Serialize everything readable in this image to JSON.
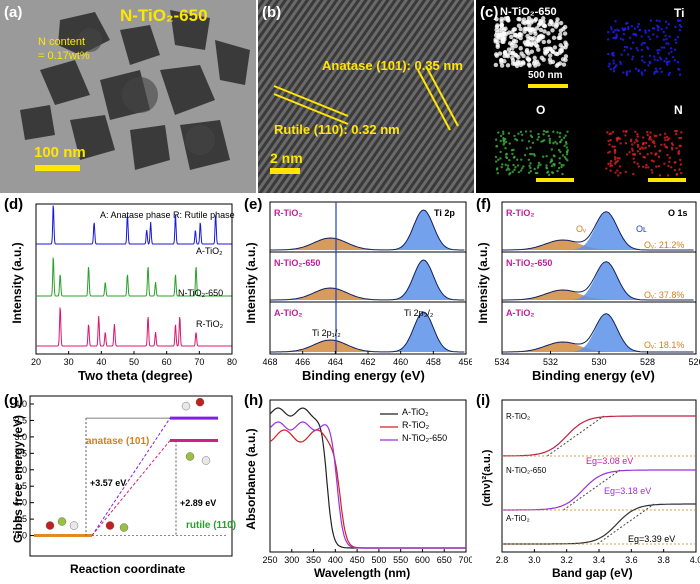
{
  "labels": {
    "a": "(a)",
    "b": "(b)",
    "c": "(c)",
    "d": "(d)",
    "e": "(e)",
    "f": "(f)",
    "g": "(g)",
    "h": "(h)",
    "i": "(i)"
  },
  "a": {
    "title": "N-TiO₂-650",
    "ncontent1": "N content",
    "ncontent2": "= 0.17wt%",
    "scale": "100 nm"
  },
  "b": {
    "anatase": "Anatase (101): 0.35 nm",
    "rutile": "Rutile (110): 0.32 nm",
    "scale": "2 nm"
  },
  "c": {
    "t1": "N-TiO₂-650",
    "t2": "Ti",
    "t3": "O",
    "t4": "N",
    "scale": "500 nm",
    "colors": [
      "#ffffff",
      "#2020ff",
      "#3db33d",
      "#e02020"
    ]
  },
  "d": {
    "legend": "A: Anatase phase   R: Rutile phase",
    "s1": "A-TiO₂",
    "s2": "N-TiO₂-650",
    "s3": "R-TiO₂",
    "ylabel": "Intensity (a.u.)",
    "xlabel": "Two theta (degree)",
    "xticks": [
      "20",
      "30",
      "40",
      "50",
      "60",
      "70",
      "80"
    ],
    "colors": [
      "#1818d8",
      "#2aa02a",
      "#d81870"
    ]
  },
  "e": {
    "s1": "R-TiO₂",
    "s2": "N-TiO₂-650",
    "s3": "A-TiO₂",
    "peak": "Ti 2p",
    "p1": "Ti 2p₁/₂",
    "p2": "Ti 2p₃/₂",
    "ylabel": "Intensity (a.u.)",
    "xlabel": "Binding energy (eV)",
    "xticks": [
      "468",
      "466",
      "464",
      "462",
      "460",
      "458",
      "456"
    ]
  },
  "f": {
    "s1": "R-TiO₂",
    "s2": "N-TiO₂-650",
    "s3": "A-TiO₂",
    "peak": "O 1s",
    "ov": "Oᵥ",
    "ol": "Oʟ",
    "v1": "Oᵥ: 21.2%",
    "v2": "Oᵥ: 37.8%",
    "v3": "Oᵥ: 18.1%",
    "ylabel": "Intensity (a.u.)",
    "xlabel": "Binding energy (eV)",
    "xticks": [
      "534",
      "532",
      "530",
      "528",
      "526"
    ]
  },
  "g": {
    "ylabel": "Gibbs free energy (eV)",
    "xlabel": "Reaction coordinate",
    "anatase": "anatase (101)",
    "rutile": "rutile (110)",
    "e1": "+3.57 eV",
    "e2": "+2.89 eV",
    "yticks": [
      "0.0",
      "0.5",
      "1.0",
      "1.5",
      "2.0",
      "2.5",
      "3.0",
      "3.5",
      "4.0"
    ]
  },
  "h": {
    "ylabel": "Absorbance (a.u.)",
    "xlabel": "Wavelength (nm)",
    "l1": "A-TiO₂",
    "l2": "R-TiO₂",
    "l3": "N-TiO₂-650",
    "xticks": [
      "250",
      "300",
      "350",
      "400",
      "450",
      "500",
      "550",
      "600",
      "650",
      "700"
    ],
    "colors": [
      "#222222",
      "#d02020",
      "#9a30e0"
    ]
  },
  "i": {
    "ylabel": "(αhν)²(a.u.)",
    "xlabel": "Band gap (eV)",
    "s1": "R-TiO₂",
    "s2": "N-TiO₂-650",
    "s3": "A-TiO₂",
    "g1": "Eɡ=3.08 eV",
    "g2": "Eɡ=3.18 eV",
    "g3": "Eɡ=3.39 eV",
    "xticks": [
      "2.8",
      "3.0",
      "3.2",
      "3.4",
      "3.6",
      "3.8",
      "4.0"
    ]
  },
  "chart_data": [
    {
      "type": "line",
      "title": "(d)",
      "xlabel": "Two theta (degree)",
      "ylabel": "Intensity (a.u.)",
      "xlim": [
        20,
        80
      ],
      "series": [
        {
          "name": "A-TiO₂",
          "peaks_2theta": [
            25.3,
            37.8,
            48.0,
            53.9,
            55.1,
            62.7,
            68.8,
            70.3,
            75.0
          ]
        },
        {
          "name": "N-TiO₂-650",
          "peaks_2theta": [
            25.3,
            27.4,
            36.1,
            41.2,
            48.0,
            54.3,
            56.6,
            62.7,
            69.0
          ]
        },
        {
          "name": "R-TiO₂",
          "peaks_2theta": [
            27.4,
            36.1,
            39.2,
            41.2,
            44.0,
            54.3,
            56.6,
            62.7,
            64.0,
            69.0
          ]
        }
      ]
    },
    {
      "type": "line",
      "title": "(e) Ti 2p",
      "xlabel": "Binding energy (eV)",
      "xlim": [
        468,
        456
      ],
      "peaks_eV": [
        464.3,
        458.6
      ]
    },
    {
      "type": "line",
      "title": "(f) O 1s",
      "xlabel": "Binding energy (eV)",
      "xlim": [
        534,
        526
      ],
      "series": [
        {
          "name": "R-TiO₂",
          "Ov_percent": 21.2
        },
        {
          "name": "N-TiO₂-650",
          "Ov_percent": 37.8
        },
        {
          "name": "A-TiO₂",
          "Ov_percent": 18.1
        }
      ]
    },
    {
      "type": "line",
      "title": "(g)",
      "ylabel": "Gibbs free energy (eV)",
      "ylim": [
        -0.5,
        4.0
      ],
      "series": [
        {
          "name": "anatase (101)",
          "delta_G": 3.57
        },
        {
          "name": "rutile (110)",
          "delta_G": 2.89
        }
      ]
    },
    {
      "type": "line",
      "title": "(h)",
      "xlabel": "Wavelength (nm)",
      "ylabel": "Absorbance (a.u.)",
      "xlim": [
        250,
        700
      ],
      "series": [
        {
          "name": "A-TiO₂",
          "edge_nm": 380
        },
        {
          "name": "R-TiO₂",
          "edge_nm": 410
        },
        {
          "name": "N-TiO₂-650",
          "edge_nm": 405
        }
      ]
    },
    {
      "type": "line",
      "title": "(i)",
      "xlabel": "Band gap (eV)",
      "xlim": [
        2.8,
        4.0
      ],
      "series": [
        {
          "name": "R-TiO₂",
          "Eg": 3.08
        },
        {
          "name": "N-TiO₂-650",
          "Eg": 3.18
        },
        {
          "name": "A-TiO₂",
          "Eg": 3.39
        }
      ]
    }
  ]
}
